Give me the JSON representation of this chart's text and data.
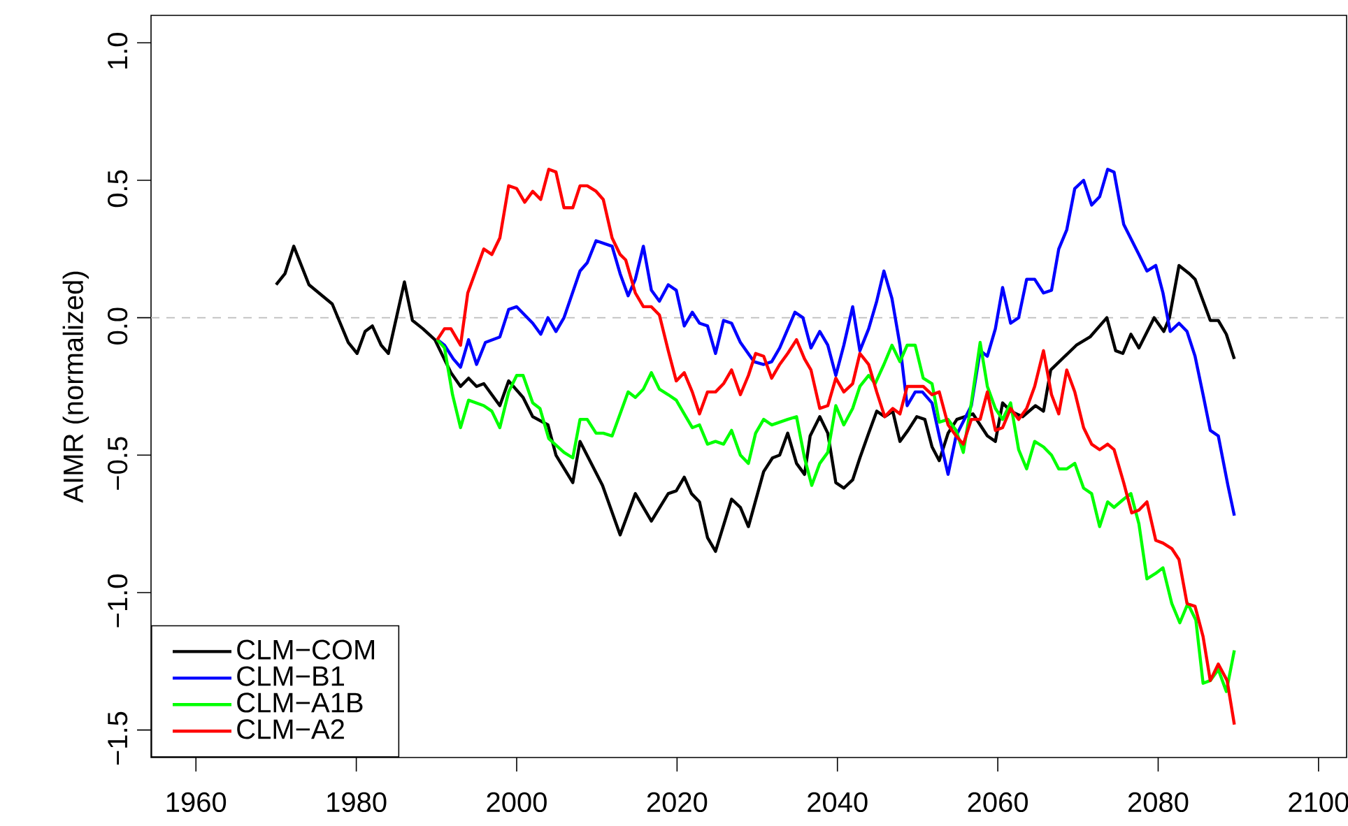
{
  "chart_data": {
    "type": "line",
    "ylabel": "AIMR (normalized)",
    "xlim": [
      1954.4,
      2103.5
    ],
    "ylim": [
      -1.6,
      1.1
    ],
    "xticks": [
      1960,
      1980,
      2000,
      2020,
      2040,
      2060,
      2080,
      2100
    ],
    "yticks": [
      {
        "value": -1.5,
        "label": "−1.5"
      },
      {
        "value": -1.0,
        "label": "−1.0"
      },
      {
        "value": -0.5,
        "label": "−0.5"
      },
      {
        "value": 0.0,
        "label": "0.0"
      },
      {
        "value": 0.5,
        "label": "0.5"
      },
      {
        "value": 1.0,
        "label": "1.0"
      }
    ],
    "legend": "bottom left",
    "ref_lines": [
      {
        "axis": "y",
        "value": 0,
        "color": "#bebebe",
        "line_style": "dashed"
      }
    ],
    "series": [
      {
        "name": "CLM−COM",
        "color": "#000000",
        "x": [
          1970.0,
          1971.1,
          1972.2,
          1974.1,
          1977.0,
          1979.0,
          1980.1,
          1981.1,
          1982.0,
          1983.1,
          1984.0,
          1986.0,
          1987.0,
          1988.3,
          1989.8,
          1991.8,
          1993.0,
          1994.0,
          1995.0,
          1995.9,
          1997.9,
          1999.0,
          2000.8,
          2002.0,
          2003.9,
          2004.9,
          2007.0,
          2007.9,
          2010.7,
          2012.9,
          2014.8,
          2016.8,
          2018.9,
          2019.9,
          2020.9,
          2021.8,
          2022.8,
          2023.8,
          2024.8,
          2026.8,
          2027.9,
          2028.9,
          2030.8,
          2031.9,
          2032.8,
          2033.8,
          2034.9,
          2035.9,
          2036.6,
          2037.8,
          2038.8,
          2039.8,
          2040.8,
          2041.9,
          2042.8,
          2043.9,
          2044.9,
          2045.9,
          2046.9,
          2047.8,
          2048.8,
          2049.9,
          2050.9,
          2051.8,
          2052.7,
          2053.8,
          2054.9,
          2056.9,
          2058.7,
          2059.7,
          2060.6,
          2061.6,
          2063.1,
          2064.7,
          2065.7,
          2066.6,
          2069.8,
          2071.5,
          2073.6,
          2074.7,
          2075.6,
          2076.6,
          2077.6,
          2079.5,
          2080.7,
          2081.4,
          2082.6,
          2083.9,
          2084.6,
          2086.5,
          2087.5,
          2088.5,
          2089.5
        ],
        "values": [
          0.12,
          0.16,
          0.26,
          0.12,
          0.05,
          -0.09,
          -0.13,
          -0.05,
          -0.03,
          -0.1,
          -0.13,
          0.13,
          -0.01,
          -0.04,
          -0.08,
          -0.2,
          -0.25,
          -0.22,
          -0.25,
          -0.24,
          -0.32,
          -0.23,
          -0.29,
          -0.36,
          -0.39,
          -0.5,
          -0.6,
          -0.45,
          -0.61,
          -0.79,
          -0.64,
          -0.74,
          -0.64,
          -0.63,
          -0.58,
          -0.64,
          -0.67,
          -0.8,
          -0.85,
          -0.66,
          -0.69,
          -0.76,
          -0.56,
          -0.51,
          -0.5,
          -0.42,
          -0.53,
          -0.57,
          -0.43,
          -0.36,
          -0.42,
          -0.6,
          -0.62,
          -0.59,
          -0.51,
          -0.42,
          -0.34,
          -0.36,
          -0.34,
          -0.45,
          -0.41,
          -0.36,
          -0.37,
          -0.47,
          -0.52,
          -0.42,
          -0.37,
          -0.35,
          -0.43,
          -0.45,
          -0.31,
          -0.34,
          -0.36,
          -0.32,
          -0.34,
          -0.19,
          -0.1,
          -0.07,
          0.0,
          -0.12,
          -0.13,
          -0.06,
          -0.11,
          0.0,
          -0.05,
          0.0,
          0.19,
          0.16,
          0.14,
          -0.01,
          -0.01,
          -0.06,
          -0.15
        ]
      },
      {
        "name": "CLM−B1",
        "color": "#0000ff",
        "x": [
          1990.1,
          1991.0,
          1992.1,
          1993.0,
          1994.0,
          1995.0,
          1996.1,
          1997.9,
          1999.0,
          2000.0,
          2002.0,
          2003.0,
          2003.9,
          2004.9,
          2005.9,
          2007.9,
          2008.8,
          2009.9,
          2011.9,
          2012.9,
          2013.9,
          2014.8,
          2015.8,
          2016.8,
          2017.8,
          2018.9,
          2019.9,
          2020.9,
          2021.9,
          2022.8,
          2023.8,
          2024.8,
          2025.8,
          2026.8,
          2027.9,
          2029.6,
          2030.8,
          2031.8,
          2032.8,
          2034.7,
          2035.7,
          2036.7,
          2037.8,
          2038.8,
          2039.8,
          2040.8,
          2041.9,
          2042.8,
          2043.9,
          2044.9,
          2045.8,
          2046.8,
          2047.8,
          2048.7,
          2049.7,
          2050.6,
          2051.8,
          2052.7,
          2053.8,
          2054.8,
          2056.7,
          2057.8,
          2058.7,
          2059.7,
          2060.6,
          2061.6,
          2062.6,
          2063.6,
          2064.6,
          2065.7,
          2066.7,
          2067.6,
          2068.6,
          2069.6,
          2070.7,
          2071.7,
          2072.7,
          2073.7,
          2074.5,
          2075.7,
          2077.6,
          2078.6,
          2079.7,
          2080.6,
          2081.5,
          2082.6,
          2083.6,
          2084.6,
          2085.6,
          2086.5,
          2087.5,
          2088.7,
          2089.5
        ],
        "values": [
          -0.08,
          -0.1,
          -0.15,
          -0.18,
          -0.08,
          -0.17,
          -0.09,
          -0.07,
          0.03,
          0.04,
          -0.02,
          -0.06,
          0.0,
          -0.05,
          0.0,
          0.17,
          0.2,
          0.28,
          0.26,
          0.16,
          0.08,
          0.14,
          0.26,
          0.1,
          0.06,
          0.12,
          0.1,
          -0.03,
          0.02,
          -0.02,
          -0.03,
          -0.13,
          -0.01,
          -0.02,
          -0.09,
          -0.16,
          -0.17,
          -0.16,
          -0.11,
          0.02,
          0.0,
          -0.11,
          -0.05,
          -0.1,
          -0.21,
          -0.1,
          0.04,
          -0.12,
          -0.04,
          0.06,
          0.17,
          0.07,
          -0.1,
          -0.32,
          -0.27,
          -0.27,
          -0.31,
          -0.43,
          -0.57,
          -0.43,
          -0.32,
          -0.12,
          -0.14,
          -0.04,
          0.11,
          -0.02,
          0.0,
          0.14,
          0.14,
          0.09,
          0.1,
          0.25,
          0.32,
          0.47,
          0.5,
          0.41,
          0.44,
          0.54,
          0.53,
          0.34,
          0.23,
          0.17,
          0.19,
          0.09,
          -0.05,
          -0.02,
          -0.05,
          -0.14,
          -0.28,
          -0.41,
          -0.43,
          -0.61,
          -0.72
        ]
      },
      {
        "name": "CLM−A1B",
        "color": "#00ff00",
        "x": [
          1990.1,
          1991.0,
          1992.0,
          1993.0,
          1994.0,
          1995.9,
          1996.9,
          1997.9,
          1999.0,
          2000.0,
          2000.8,
          2002.0,
          2002.9,
          2004.0,
          2005.9,
          2007.0,
          2007.9,
          2008.8,
          2009.9,
          2010.8,
          2011.9,
          2013.9,
          2014.8,
          2015.8,
          2016.8,
          2017.8,
          2018.9,
          2019.9,
          2020.9,
          2021.9,
          2022.8,
          2023.8,
          2024.8,
          2025.8,
          2026.8,
          2027.9,
          2028.9,
          2029.8,
          2030.8,
          2031.8,
          2032.8,
          2033.8,
          2034.9,
          2035.9,
          2036.8,
          2037.8,
          2038.8,
          2039.8,
          2040.8,
          2041.9,
          2042.8,
          2043.9,
          2044.7,
          2045.8,
          2046.8,
          2047.8,
          2048.7,
          2049.7,
          2050.7,
          2051.8,
          2052.7,
          2053.8,
          2054.8,
          2055.7,
          2056.7,
          2057.8,
          2058.7,
          2059.7,
          2060.6,
          2061.6,
          2062.6,
          2063.6,
          2064.6,
          2065.7,
          2066.7,
          2067.6,
          2068.6,
          2069.6,
          2070.7,
          2071.7,
          2072.7,
          2073.7,
          2074.5,
          2075.7,
          2076.6,
          2077.6,
          2078.6,
          2079.7,
          2080.6,
          2081.7,
          2082.7,
          2083.7,
          2084.7,
          2085.6,
          2086.5,
          2087.5,
          2088.5,
          2089.5
        ],
        "values": [
          -0.08,
          -0.11,
          -0.28,
          -0.4,
          -0.3,
          -0.32,
          -0.34,
          -0.4,
          -0.27,
          -0.21,
          -0.21,
          -0.31,
          -0.33,
          -0.44,
          -0.49,
          -0.51,
          -0.37,
          -0.37,
          -0.42,
          -0.42,
          -0.43,
          -0.27,
          -0.29,
          -0.26,
          -0.2,
          -0.26,
          -0.28,
          -0.3,
          -0.35,
          -0.4,
          -0.39,
          -0.46,
          -0.45,
          -0.46,
          -0.41,
          -0.5,
          -0.53,
          -0.42,
          -0.37,
          -0.39,
          -0.38,
          -0.37,
          -0.36,
          -0.51,
          -0.61,
          -0.53,
          -0.49,
          -0.32,
          -0.39,
          -0.33,
          -0.25,
          -0.21,
          -0.24,
          -0.17,
          -0.1,
          -0.16,
          -0.1,
          -0.1,
          -0.22,
          -0.24,
          -0.38,
          -0.37,
          -0.41,
          -0.49,
          -0.31,
          -0.09,
          -0.25,
          -0.33,
          -0.37,
          -0.31,
          -0.48,
          -0.55,
          -0.45,
          -0.47,
          -0.5,
          -0.55,
          -0.55,
          -0.53,
          -0.62,
          -0.64,
          -0.76,
          -0.67,
          -0.69,
          -0.66,
          -0.64,
          -0.75,
          -0.95,
          -0.93,
          -0.91,
          -1.04,
          -1.11,
          -1.04,
          -1.1,
          -1.33,
          -1.32,
          -1.28,
          -1.36,
          -1.21
        ]
      },
      {
        "name": "CLM−A2",
        "color": "#ff0000",
        "x": [
          1990.1,
          1991.0,
          1991.8,
          1993.0,
          1993.9,
          1995.9,
          1996.9,
          1997.9,
          1999.0,
          2000.0,
          2001.0,
          2002.0,
          2003.0,
          2004.0,
          2004.9,
          2005.9,
          2007.0,
          2007.9,
          2008.8,
          2009.9,
          2010.8,
          2011.9,
          2012.9,
          2013.6,
          2014.8,
          2015.8,
          2016.8,
          2017.8,
          2018.9,
          2019.9,
          2020.9,
          2021.9,
          2022.8,
          2023.8,
          2024.8,
          2025.8,
          2026.8,
          2027.9,
          2028.9,
          2029.8,
          2030.8,
          2031.8,
          2032.8,
          2033.8,
          2034.9,
          2035.9,
          2036.7,
          2037.8,
          2038.8,
          2039.8,
          2040.8,
          2041.9,
          2042.8,
          2043.9,
          2044.9,
          2045.9,
          2046.9,
          2047.8,
          2048.7,
          2049.7,
          2050.7,
          2051.8,
          2052.7,
          2053.8,
          2054.8,
          2055.7,
          2056.7,
          2057.8,
          2058.7,
          2059.7,
          2060.6,
          2061.6,
          2062.6,
          2063.6,
          2064.6,
          2065.7,
          2066.7,
          2067.6,
          2068.6,
          2069.6,
          2070.7,
          2071.7,
          2072.7,
          2073.7,
          2074.5,
          2075.7,
          2076.7,
          2077.6,
          2078.6,
          2079.7,
          2080.6,
          2081.7,
          2082.6,
          2083.6,
          2084.6,
          2085.6,
          2086.5,
          2087.5,
          2088.6,
          2089.5
        ],
        "values": [
          -0.08,
          -0.04,
          -0.04,
          -0.1,
          0.09,
          0.25,
          0.23,
          0.29,
          0.48,
          0.47,
          0.42,
          0.46,
          0.43,
          0.54,
          0.53,
          0.4,
          0.4,
          0.48,
          0.48,
          0.46,
          0.43,
          0.29,
          0.23,
          0.21,
          0.09,
          0.04,
          0.04,
          0.01,
          -0.12,
          -0.23,
          -0.2,
          -0.27,
          -0.35,
          -0.27,
          -0.27,
          -0.24,
          -0.19,
          -0.28,
          -0.21,
          -0.13,
          -0.14,
          -0.22,
          -0.17,
          -0.13,
          -0.08,
          -0.15,
          -0.19,
          -0.33,
          -0.32,
          -0.22,
          -0.27,
          -0.24,
          -0.13,
          -0.17,
          -0.27,
          -0.36,
          -0.33,
          -0.35,
          -0.25,
          -0.25,
          -0.25,
          -0.28,
          -0.27,
          -0.39,
          -0.43,
          -0.46,
          -0.37,
          -0.37,
          -0.27,
          -0.41,
          -0.4,
          -0.33,
          -0.37,
          -0.33,
          -0.25,
          -0.12,
          -0.28,
          -0.35,
          -0.19,
          -0.27,
          -0.4,
          -0.46,
          -0.48,
          -0.46,
          -0.48,
          -0.6,
          -0.71,
          -0.7,
          -0.67,
          -0.81,
          -0.82,
          -0.84,
          -0.88,
          -1.04,
          -1.05,
          -1.16,
          -1.32,
          -1.26,
          -1.32,
          -1.48
        ]
      }
    ]
  }
}
